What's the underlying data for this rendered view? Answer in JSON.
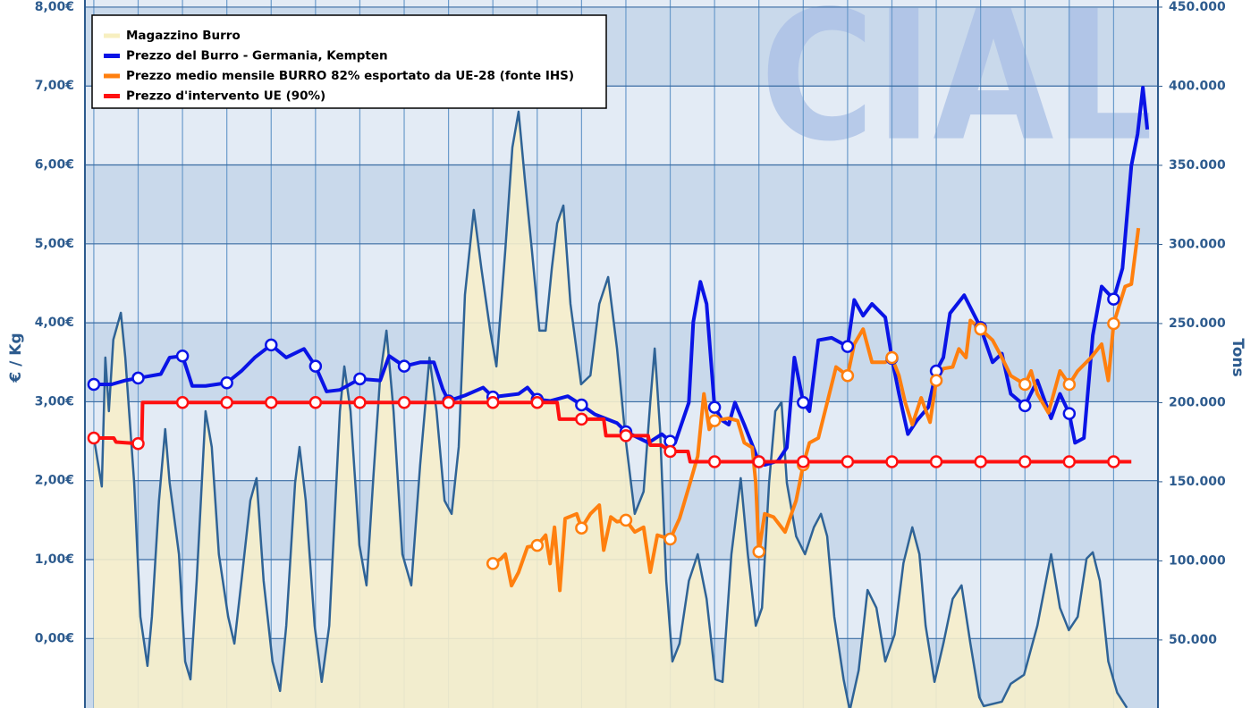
{
  "chart_data": {
    "type": "line",
    "watermark": "CIAL",
    "y_label": "€ / Kg",
    "y2_label": "Tons",
    "xlim": [
      -0.2,
      24
    ],
    "xticks": [
      0,
      1,
      2,
      3,
      4,
      5,
      6,
      7,
      8,
      9,
      10,
      11,
      12,
      13,
      14,
      15,
      16,
      17,
      18,
      19,
      20,
      21,
      22,
      23
    ],
    "ylim": [
      -0.88,
      8.09
    ],
    "yticks": [
      {
        "value": 0,
        "label": "0,00€"
      },
      {
        "value": 1,
        "label": "1,00€"
      },
      {
        "value": 2,
        "label": "2,00€"
      },
      {
        "value": 3,
        "label": "3,00€"
      },
      {
        "value": 4,
        "label": "4,00€"
      },
      {
        "value": 5,
        "label": "5,00€"
      },
      {
        "value": 6,
        "label": "6,00€"
      },
      {
        "value": 7,
        "label": "7,00€"
      },
      {
        "value": 8,
        "label": "8,00€"
      }
    ],
    "y2lim": [
      7000,
      454500
    ],
    "y2ticks": [
      {
        "value": 50000,
        "label": "50.000"
      },
      {
        "value": 100000,
        "label": "100.000"
      },
      {
        "value": 150000,
        "label": "150.000"
      },
      {
        "value": 200000,
        "label": "200.000"
      },
      {
        "value": 250000,
        "label": "250.000"
      },
      {
        "value": 300000,
        "label": "300.000"
      },
      {
        "value": 350000,
        "label": "350.000"
      },
      {
        "value": 400000,
        "label": "400.000"
      },
      {
        "value": 450000,
        "label": "450.000"
      }
    ],
    "grid": true,
    "legend": "top-left",
    "series": [
      {
        "name": "Magazzino Burro",
        "color": "#2f6396",
        "fill": "#f6eecb",
        "legend_color": "#f7efc0",
        "style": "area",
        "axis": "y2",
        "x": [
          0,
          0.18,
          0.26,
          0.34,
          0.44,
          0.61,
          0.71,
          0.91,
          1.05,
          1.21,
          1.31,
          1.47,
          1.61,
          1.71,
          1.92,
          2.06,
          2.18,
          2.32,
          2.52,
          2.66,
          2.82,
          3.03,
          3.17,
          3.33,
          3.53,
          3.67,
          3.83,
          4.03,
          4.2,
          4.34,
          4.54,
          4.64,
          4.78,
          4.98,
          5.14,
          5.31,
          5.55,
          5.65,
          5.79,
          5.99,
          6.15,
          6.31,
          6.46,
          6.6,
          6.76,
          6.96,
          7.16,
          7.36,
          7.57,
          7.73,
          7.91,
          8.07,
          8.23,
          8.37,
          8.57,
          8.74,
          8.94,
          9.08,
          9.28,
          9.44,
          9.58,
          9.72,
          9.88,
          10.05,
          10.19,
          10.33,
          10.45,
          10.59,
          10.75,
          10.99,
          11.2,
          11.4,
          11.6,
          11.8,
          11.99,
          12.2,
          12.4,
          12.55,
          12.65,
          12.77,
          12.91,
          13.05,
          13.21,
          13.42,
          13.62,
          13.82,
          14.02,
          14.18,
          14.38,
          14.59,
          14.75,
          14.93,
          15.07,
          15.23,
          15.37,
          15.51,
          15.63,
          15.84,
          16.04,
          16.24,
          16.4,
          16.54,
          16.7,
          16.91,
          17.05,
          17.25,
          17.45,
          17.65,
          17.85,
          18.06,
          18.26,
          18.46,
          18.62,
          18.76,
          18.96,
          19.16,
          19.37,
          19.57,
          19.77,
          19.97,
          20.07,
          20.48,
          20.68,
          20.98,
          21.28,
          21.59,
          21.79,
          21.99,
          22.19,
          22.39,
          22.53,
          22.69,
          22.88,
          23.08,
          23.3
        ],
        "values": [
          178000,
          147000,
          228500,
          194600,
          239800,
          256800,
          228500,
          149400,
          64700,
          33600,
          64700,
          138100,
          183300,
          149400,
          104200,
          36400,
          25100,
          87300,
          194600,
          172000,
          104200,
          64700,
          47700,
          87300,
          138100,
          152300,
          87300,
          36400,
          17800,
          59000,
          149400,
          172000,
          138100,
          59000,
          23500,
          59000,
          194600,
          222900,
          194600,
          109900,
          84500,
          155100,
          217200,
          245500,
          194600,
          104200,
          84500,
          160700,
          228500,
          194600,
          138100,
          129700,
          172000,
          268100,
          321800,
          285000,
          245500,
          222900,
          296300,
          361300,
          383900,
          341500,
          296300,
          245500,
          245500,
          285000,
          313300,
          324600,
          262400,
          211600,
          217200,
          262400,
          279400,
          234200,
          178000,
          129700,
          143800,
          200300,
          234200,
          183300,
          87300,
          36400,
          47700,
          87300,
          104200,
          76000,
          25100,
          23500,
          104200,
          152300,
          104200,
          59000,
          70300,
          149400,
          194600,
          200300,
          149400,
          115500,
          104200,
          121200,
          129700,
          115500,
          64700,
          25100,
          5400,
          30800,
          81600,
          70300,
          36400,
          53400,
          98600,
          121200,
          104200,
          59000,
          23500,
          47700,
          76000,
          84500,
          47700,
          13800,
          8200,
          11000,
          22300,
          28000,
          59000,
          104200,
          70300,
          56200,
          64700,
          101400,
          105400,
          87300,
          36400,
          16700,
          7100
        ]
      },
      {
        "name": "Prezzo del Burro - Germania, Kempten",
        "color": "#0a14e6",
        "style": "line",
        "x": [
          0,
          0.4,
          0.71,
          1,
          1.51,
          1.71,
          2,
          2.22,
          2.52,
          3,
          3.33,
          3.63,
          4,
          4.34,
          4.74,
          5,
          5.25,
          5.55,
          6,
          6.46,
          6.66,
          7,
          7.36,
          7.67,
          7.87,
          8,
          8.37,
          8.78,
          9,
          9.58,
          9.78,
          10,
          10.29,
          10.69,
          11,
          11.3,
          11.8,
          12,
          12.51,
          12.81,
          13,
          13.11,
          13.42,
          13.52,
          13.68,
          13.82,
          14,
          14.18,
          14.32,
          14.46,
          14.67,
          15,
          15.13,
          15.43,
          15.63,
          15.8,
          16,
          16.14,
          16.34,
          16.64,
          17,
          17.15,
          17.35,
          17.55,
          17.85,
          18,
          18.16,
          18.36,
          18.56,
          18.82,
          19,
          19.16,
          19.31,
          19.63,
          20,
          20.27,
          20.48,
          20.68,
          21,
          21.28,
          21.59,
          21.79,
          22,
          22.13,
          22.33,
          22.53,
          22.73,
          23,
          23.2,
          23.4,
          23.54,
          23.66,
          23.76
        ],
        "values": [
          3.22,
          3.22,
          3.27,
          3.3,
          3.35,
          3.56,
          3.58,
          3.2,
          3.2,
          3.24,
          3.39,
          3.56,
          3.72,
          3.56,
          3.67,
          3.45,
          3.13,
          3.15,
          3.29,
          3.27,
          3.58,
          3.45,
          3.5,
          3.5,
          3.16,
          3.01,
          3.08,
          3.18,
          3.06,
          3.1,
          3.18,
          3.03,
          3.01,
          3.07,
          2.96,
          2.84,
          2.73,
          2.62,
          2.48,
          2.59,
          2.5,
          2.48,
          2.99,
          4.01,
          4.52,
          4.24,
          2.93,
          2.76,
          2.71,
          2.99,
          2.71,
          2.24,
          2.2,
          2.25,
          2.42,
          3.56,
          2.99,
          2.88,
          3.78,
          3.81,
          3.7,
          4.29,
          4.09,
          4.24,
          4.07,
          3.55,
          3.1,
          2.59,
          2.76,
          2.93,
          3.39,
          3.56,
          4.12,
          4.35,
          3.94,
          3.5,
          3.61,
          3.1,
          2.95,
          3.27,
          2.79,
          3.1,
          2.85,
          2.48,
          2.54,
          3.84,
          4.46,
          4.3,
          4.69,
          5.99,
          6.39,
          6.98,
          6.45
        ]
      },
      {
        "name": "Prezzo medio mensile BURRO 82% esportato da UE-28 (fonte IHS)",
        "color": "#ff7f0e",
        "style": "line",
        "x": [
          9,
          9.18,
          9.28,
          9.42,
          9.58,
          9.78,
          10,
          10.19,
          10.29,
          10.39,
          10.51,
          10.63,
          10.89,
          11,
          11.2,
          11.4,
          11.5,
          11.66,
          11.8,
          12,
          12.2,
          12.4,
          12.55,
          12.71,
          13,
          13.21,
          13.42,
          13.62,
          13.76,
          13.88,
          14,
          14.32,
          14.52,
          14.67,
          14.85,
          14.93,
          15,
          15.13,
          15.33,
          15.59,
          15.84,
          16,
          16.14,
          16.34,
          16.54,
          16.74,
          17,
          17.15,
          17.35,
          17.55,
          17.85,
          18,
          18.16,
          18.3,
          18.46,
          18.66,
          18.86,
          19,
          19.16,
          19.37,
          19.51,
          19.67,
          19.77,
          20,
          20.27,
          20.48,
          20.68,
          21,
          21.14,
          21.28,
          21.53,
          21.79,
          22,
          22.19,
          22.49,
          22.73,
          22.88,
          23,
          23.26,
          23.4,
          23.56
        ],
        "values": [
          0.95,
          1.01,
          1.07,
          0.67,
          0.84,
          1.16,
          1.18,
          1.31,
          0.95,
          1.41,
          0.61,
          1.52,
          1.58,
          1.4,
          1.58,
          1.69,
          1.12,
          1.54,
          1.48,
          1.5,
          1.35,
          1.41,
          0.84,
          1.31,
          1.26,
          1.52,
          1.92,
          2.31,
          3.1,
          2.65,
          2.76,
          2.79,
          2.76,
          2.48,
          2.42,
          1.97,
          1.1,
          1.58,
          1.54,
          1.35,
          1.75,
          2.2,
          2.48,
          2.54,
          2.99,
          3.44,
          3.33,
          3.73,
          3.92,
          3.5,
          3.5,
          3.56,
          3.33,
          2.99,
          2.71,
          3.05,
          2.74,
          3.27,
          3.42,
          3.44,
          3.67,
          3.56,
          4.03,
          3.92,
          3.78,
          3.56,
          3.33,
          3.22,
          3.39,
          3.1,
          2.86,
          3.39,
          3.22,
          3.39,
          3.56,
          3.73,
          3.27,
          3.99,
          4.46,
          4.49,
          5.2
        ]
      },
      {
        "name": "Prezzo d'intervento UE (90%)",
        "color": "#ff1010",
        "style": "line",
        "x": [
          0,
          0.45,
          0.5,
          1,
          1.08,
          1.1,
          2,
          3,
          4,
          5,
          6,
          7,
          8,
          9,
          10,
          10.45,
          10.5,
          11,
          11.5,
          11.55,
          12,
          12.5,
          12.55,
          12.8,
          13,
          13.4,
          13.45,
          14,
          15,
          16,
          17,
          18,
          19,
          20,
          21,
          22,
          23,
          23.4
        ],
        "values": [
          2.54,
          2.54,
          2.49,
          2.47,
          2.47,
          2.99,
          2.99,
          2.99,
          2.99,
          2.99,
          2.99,
          2.99,
          2.99,
          2.99,
          2.99,
          2.99,
          2.78,
          2.78,
          2.78,
          2.57,
          2.57,
          2.57,
          2.45,
          2.45,
          2.37,
          2.37,
          2.24,
          2.24,
          2.24,
          2.24,
          2.24,
          2.24,
          2.24,
          2.24,
          2.24,
          2.24,
          2.24,
          2.24
        ]
      }
    ]
  }
}
